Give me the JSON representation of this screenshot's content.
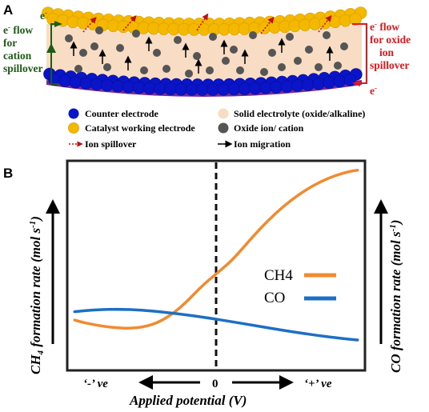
{
  "panel_a": {
    "label": "A",
    "left_label": {
      "electron": "e",
      "sup": "-",
      "lines": [
        "flow",
        "for",
        "cation",
        "spillover"
      ]
    },
    "left_top_marker": {
      "electron": "e",
      "sup": "-"
    },
    "right_label": {
      "electron": "e",
      "sup": "-",
      "lines": [
        "flow",
        "for oxide",
        "ion",
        "spillover"
      ]
    },
    "right_bottom_marker": {
      "electron": "e",
      "sup": "-"
    },
    "colors": {
      "counter_electrode": "#0a14c8",
      "catalyst": "#f5b800",
      "electrolyte": "#f8dcc4",
      "ion": "#555555",
      "substrate": "#7a2a9a",
      "left_flow": "#1e5c16",
      "right_flow": "#e0181e"
    },
    "legend": {
      "counter": "Counter electrode",
      "catalyst": "Catalyst working electrode",
      "spillover": "Ion spillover",
      "electrolyte": "Solid electrolyte (oxide/alkaline)",
      "ion": "Oxide ion/ cation",
      "migration": "Ion migration"
    }
  },
  "panel_b": {
    "label": "B",
    "chart_data": {
      "type": "line",
      "xlabel": "Applied potential (V)",
      "ylabel_left": {
        "main": "CH",
        "sub": "4",
        "rest": " formation rate (mol s",
        "sup": "-1",
        "close": ")"
      },
      "ylabel_right": {
        "main": "CO formation rate (mol s",
        "sup": "-1",
        "close": ")"
      },
      "x_ticks": {
        "left": "‘-’ ve",
        "center": "0",
        "right": "‘+’ ve"
      },
      "xlim": [
        -1,
        1
      ],
      "ylim": [
        0,
        1
      ],
      "series": [
        {
          "name": "CH4",
          "color": "#f28a30",
          "x": [
            -0.95,
            -0.9,
            -0.8,
            -0.7,
            -0.6,
            -0.5,
            -0.4,
            -0.3,
            -0.2,
            -0.1,
            0,
            0.1,
            0.2,
            0.3,
            0.4,
            0.5,
            0.6,
            0.7,
            0.8,
            0.9,
            0.95
          ],
          "y": [
            0.24,
            0.23,
            0.215,
            0.205,
            0.2,
            0.205,
            0.225,
            0.265,
            0.325,
            0.4,
            0.46,
            0.52,
            0.6,
            0.68,
            0.75,
            0.81,
            0.86,
            0.9,
            0.93,
            0.95,
            0.955
          ]
        },
        {
          "name": "CO",
          "color": "#1c6fc4",
          "x": [
            -0.95,
            -0.8,
            -0.65,
            -0.5,
            -0.35,
            -0.2,
            -0.05,
            0.1,
            0.25,
            0.4,
            0.55,
            0.7,
            0.85,
            0.95
          ],
          "y": [
            0.28,
            0.29,
            0.292,
            0.288,
            0.278,
            0.265,
            0.25,
            0.233,
            0.215,
            0.197,
            0.18,
            0.165,
            0.152,
            0.145
          ]
        }
      ]
    }
  }
}
